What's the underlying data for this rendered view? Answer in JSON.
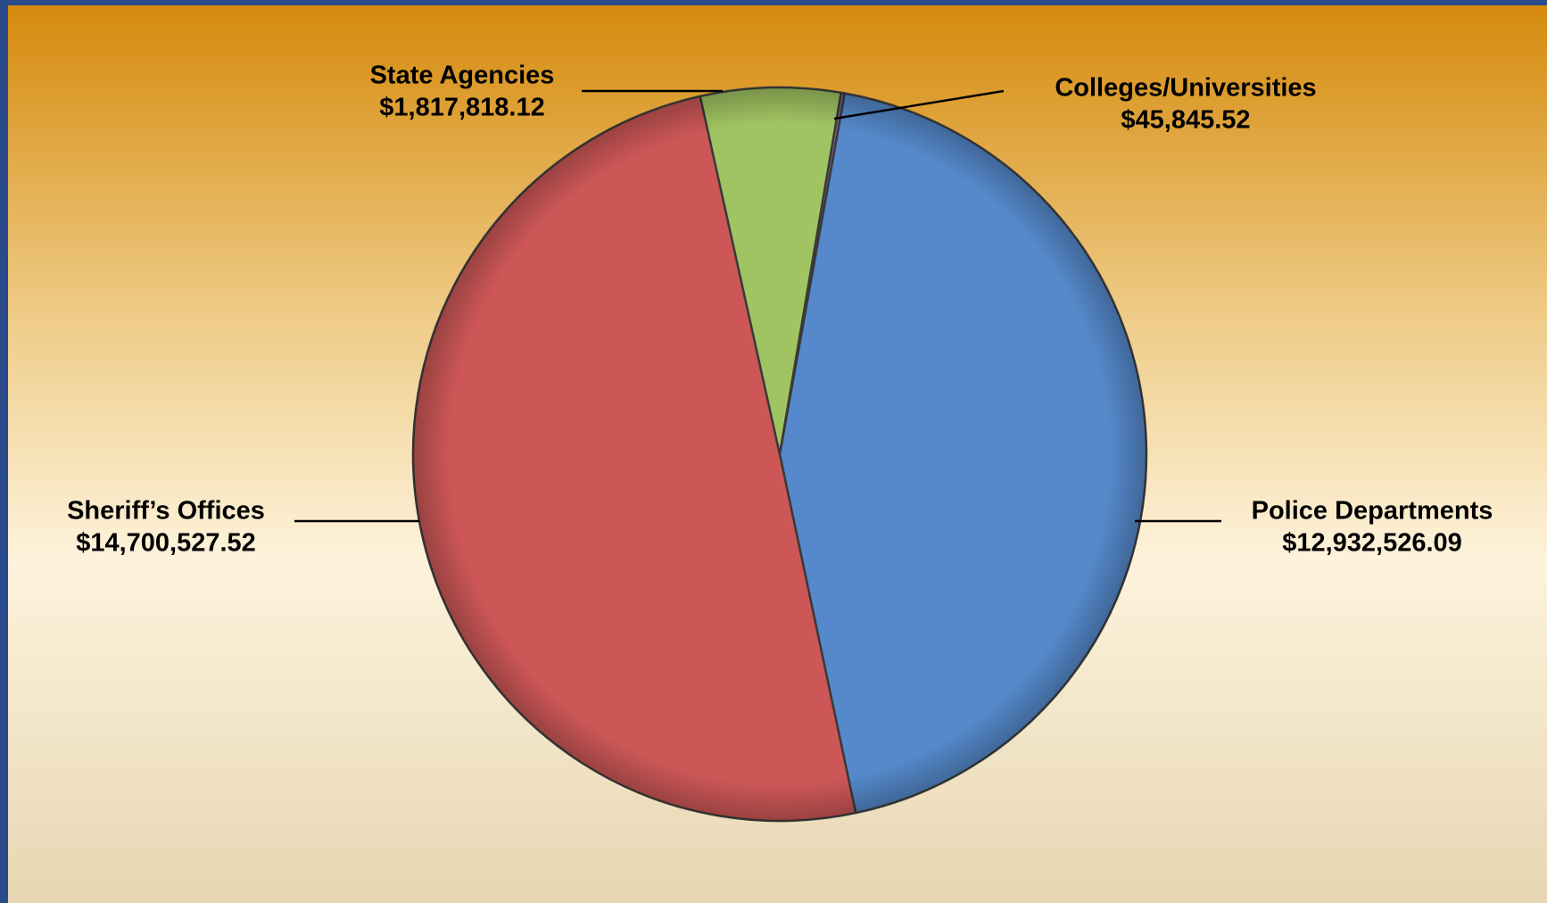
{
  "chart_data": {
    "type": "pie",
    "categories": [
      "Police Departments",
      "Sheriff’s Offices",
      "State Agencies",
      "Colleges/Universities"
    ],
    "values": [
      12932526.09,
      14700527.52,
      1817818.12,
      45845.52
    ],
    "value_labels": [
      "$12,932,526.09",
      "$14,700,527.52",
      "$1,817,818.12",
      "$45,845.52"
    ],
    "colors": [
      "#5589cb",
      "#cd5757",
      "#a1c462",
      "#8064a2"
    ]
  }
}
